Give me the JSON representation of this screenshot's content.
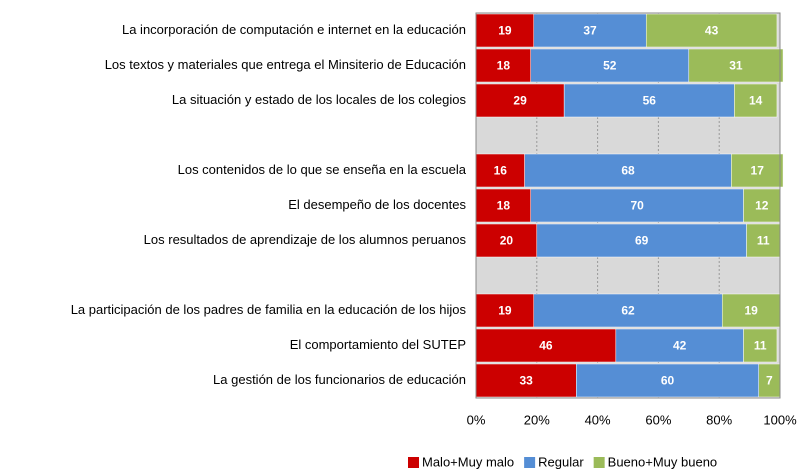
{
  "chart_data": {
    "type": "stacked-bar-horizontal",
    "categories": [
      "La incorporación de computación e internet en la educación",
      "Los textos y materiales que entrega el Minsiterio de Educación",
      "La situación y estado de los locales de los colegios",
      null,
      "Los contenidos de lo que se enseña en la escuela",
      "El desempeño de los docentes",
      "Los resultados de aprendizaje de los alumnos peruanos",
      null,
      "La participación de los padres de familia en la educación de los hijos",
      "El comportamiento del SUTEP",
      "La gestión de los funcionarios de educación"
    ],
    "series": [
      {
        "name": "Malo+Muy malo",
        "color": "#cc0000",
        "values": [
          19,
          18,
          29,
          null,
          16,
          18,
          20,
          null,
          19,
          46,
          33
        ]
      },
      {
        "name": "Regular",
        "color": "#558ed5",
        "values": [
          37,
          52,
          56,
          null,
          68,
          70,
          69,
          null,
          62,
          42,
          60
        ]
      },
      {
        "name": "Bueno+Muy bueno",
        "color": "#9bbb59",
        "values": [
          43,
          31,
          14,
          null,
          17,
          12,
          11,
          null,
          19,
          11,
          7
        ]
      }
    ],
    "xlim": [
      0,
      100
    ],
    "xticks": [
      {
        "value": 0,
        "label": "0%"
      },
      {
        "value": 20,
        "label": "20%"
      },
      {
        "value": 40,
        "label": "40%"
      },
      {
        "value": 60,
        "label": "60%"
      },
      {
        "value": 80,
        "label": "80%"
      },
      {
        "value": 100,
        "label": "100%"
      }
    ],
    "grid": true,
    "legend": "bottom-right"
  }
}
